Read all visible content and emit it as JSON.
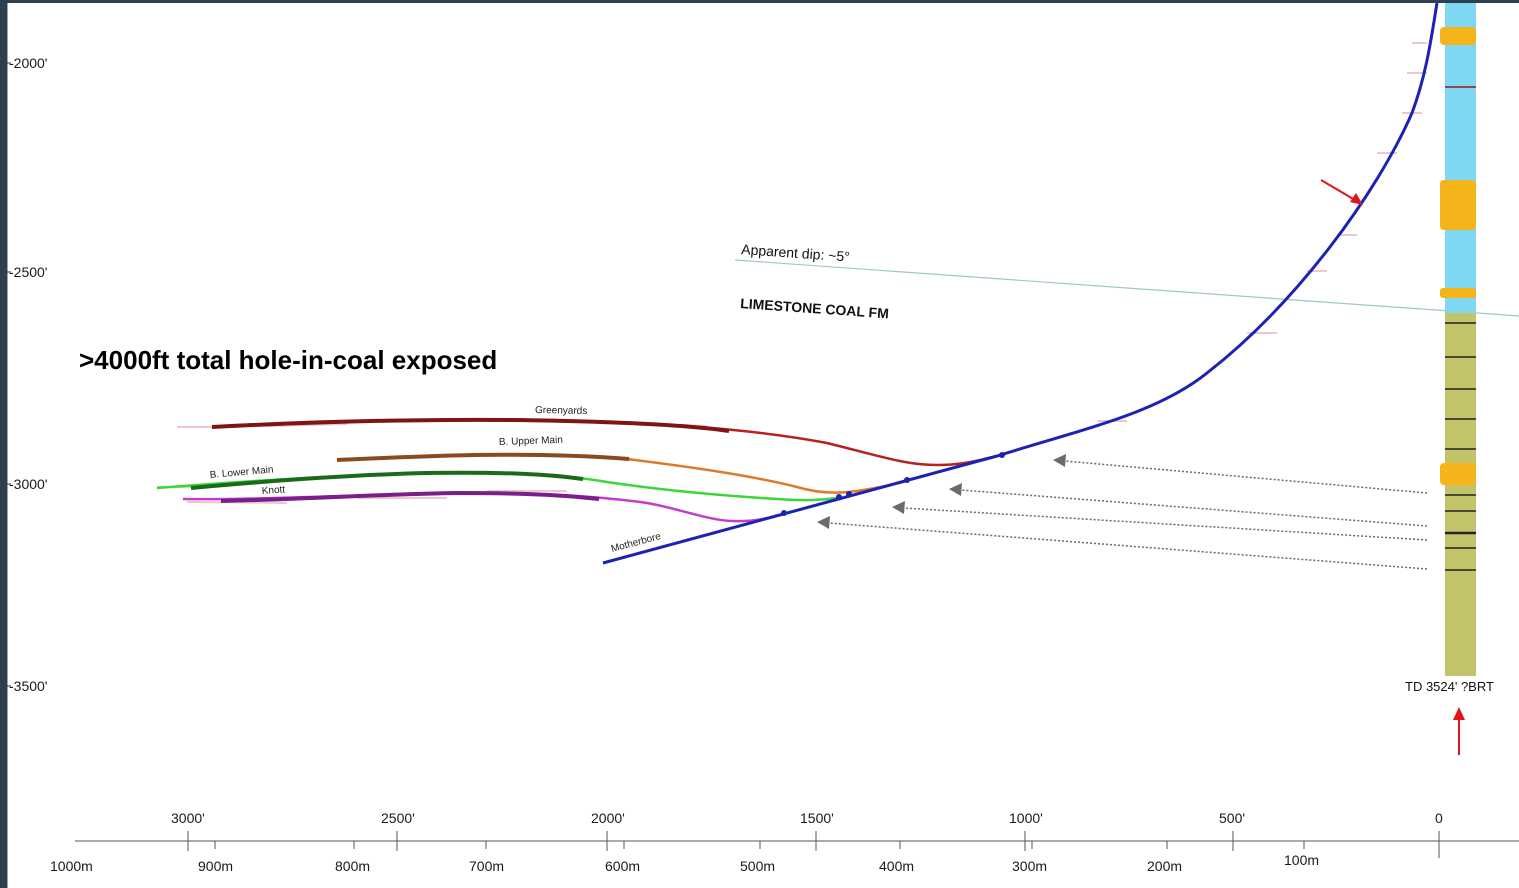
{
  "headline": ">4000ft total hole-in-coal exposed",
  "annotations": {
    "apparent_dip": "Apparent dip: ~5°",
    "formation": "LIMESTONE COAL FM",
    "td": "TD 3524' ?BRT"
  },
  "depth_axis": {
    "ticks": [
      "-2000'",
      "-2500'",
      "-3000'",
      "-3500'"
    ]
  },
  "distance_axis_ft": {
    "ticks": [
      "3000'",
      "2500'",
      "2000'",
      "1500'",
      "1000'",
      "500'",
      "0"
    ]
  },
  "distance_axis_m": {
    "ticks": [
      "1000m",
      "900m",
      "800m",
      "700m",
      "600m",
      "500m",
      "400m",
      "300m",
      "200m",
      "100m"
    ]
  },
  "wells": [
    {
      "name": "Greenyards",
      "color": "#b4231e"
    },
    {
      "name": "B. Upper Main",
      "color": "#e07a28"
    },
    {
      "name": "B. Lower Main",
      "color": "#3ad63a"
    },
    {
      "name": "Knott",
      "color": "#c23fc8"
    },
    {
      "name": "Motherbore",
      "color": "#1c23b4"
    }
  ],
  "colors": {
    "frame": "#2f3f52",
    "log_upper": "#7fd8f2",
    "log_lower": "#c3c46a",
    "coal_marker": "#f5b419",
    "arrow_red": "#e0141a",
    "arrow_grey": "#6a6a6a"
  }
}
